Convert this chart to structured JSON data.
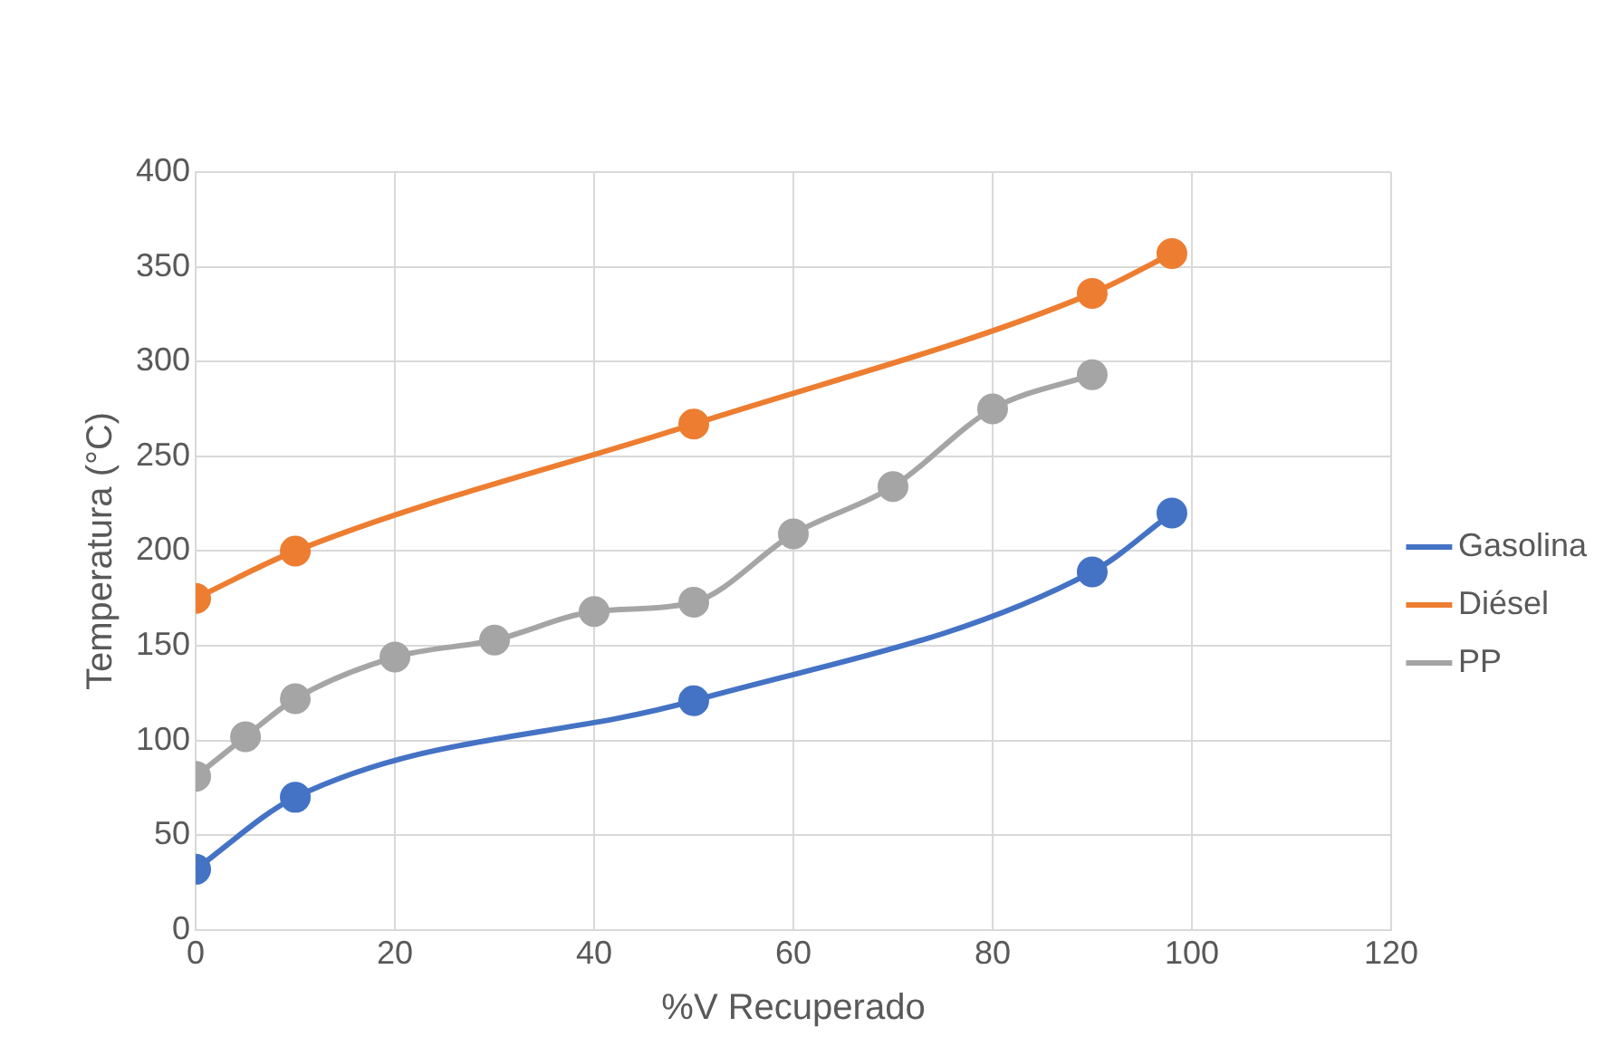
{
  "chart_data": {
    "type": "line",
    "xlabel": "%V Recuperado",
    "ylabel": "Temperatura (°C)",
    "xlim": [
      0,
      120
    ],
    "xticks": [
      0,
      20,
      40,
      60,
      80,
      100,
      120
    ],
    "ylim": [
      0,
      400
    ],
    "yticks": [
      0,
      50,
      100,
      150,
      200,
      250,
      300,
      350,
      400
    ],
    "grid": true,
    "legend": "right",
    "marker": "circle",
    "line_style": "solid",
    "series": [
      {
        "name": "Gasolina",
        "color": "#4472c4",
        "x": [
          0,
          10,
          50,
          90,
          98
        ],
        "values": [
          32,
          70,
          121,
          189,
          220
        ]
      },
      {
        "name": "Diésel",
        "color": "#ed7d31",
        "x": [
          0,
          10,
          50,
          90,
          98
        ],
        "values": [
          175,
          200,
          267,
          336,
          357
        ]
      },
      {
        "name": "PP",
        "color": "#a5a5a5",
        "x": [
          0,
          5,
          10,
          20,
          30,
          40,
          50,
          60,
          70,
          80,
          90
        ],
        "values": [
          81,
          102,
          122,
          144,
          153,
          168,
          173,
          209,
          234,
          275,
          293
        ]
      }
    ]
  }
}
